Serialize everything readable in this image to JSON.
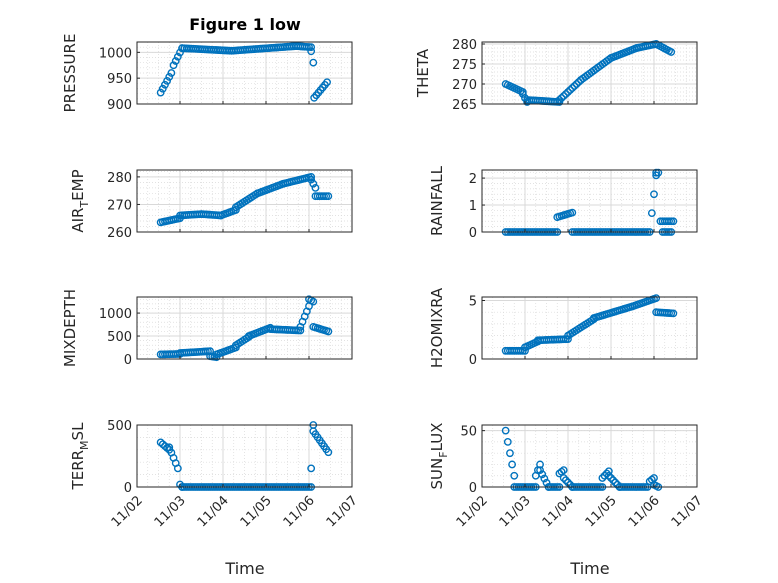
{
  "title": "Figure 1 low",
  "marker_color": "#0072bd",
  "x_tick_labels": [
    "11/02",
    "11/03",
    "11/04",
    "11/05",
    "11/06",
    "11/07"
  ],
  "x_label": "Time",
  "chart_data": [
    {
      "type": "scatter",
      "id": "pressure",
      "ylabel": "PRESSURE",
      "ylim": [
        900,
        1020
      ],
      "yticks": [
        900,
        950,
        1000
      ],
      "ytick_labels": [
        "900",
        "950",
        "1000"
      ],
      "xlim": [
        2.0,
        7.0
      ],
      "grid": true,
      "minor_grid": true,
      "segments": [
        {
          "x": [
            2.55,
            2.8
          ],
          "y": [
            922,
            960
          ]
        },
        {
          "x": [
            2.85,
            3.05
          ],
          "y": [
            975,
            1008
          ]
        },
        {
          "x": [
            3.05,
            4.2
          ],
          "y": [
            1008,
            1003
          ]
        },
        {
          "x": [
            4.2,
            5.7
          ],
          "y": [
            1003,
            1012
          ]
        },
        {
          "x": [
            5.7,
            6.05
          ],
          "y": [
            1012,
            1010
          ]
        },
        {
          "x": [
            6.05,
            6.1
          ],
          "y": [
            1002,
            980
          ]
        },
        {
          "x": [
            6.12,
            6.42
          ],
          "y": [
            912,
            942
          ]
        }
      ]
    },
    {
      "type": "scatter",
      "id": "theta",
      "ylabel": "THETA",
      "ylim": [
        265,
        280.5
      ],
      "yticks": [
        265,
        270,
        275,
        280
      ],
      "ytick_labels": [
        "265",
        "270",
        "275",
        "280"
      ],
      "xlim": [
        2.0,
        7.0
      ],
      "grid": true,
      "minor_grid": true,
      "segments": [
        {
          "x": [
            2.55,
            2.95
          ],
          "y": [
            270,
            268
          ]
        },
        {
          "x": [
            2.95,
            3.05
          ],
          "y": [
            267.5,
            265.5
          ]
        },
        {
          "x": [
            3.05,
            3.8
          ],
          "y": [
            266,
            265.5
          ]
        },
        {
          "x": [
            3.8,
            4.3
          ],
          "y": [
            266,
            271
          ]
        },
        {
          "x": [
            4.3,
            5.0
          ],
          "y": [
            271,
            276.5
          ]
        },
        {
          "x": [
            5.0,
            5.6
          ],
          "y": [
            276.5,
            279
          ]
        },
        {
          "x": [
            5.6,
            6.05
          ],
          "y": [
            279,
            280
          ]
        },
        {
          "x": [
            6.05,
            6.4
          ],
          "y": [
            280,
            278
          ]
        }
      ]
    },
    {
      "type": "scatter",
      "id": "air_temp",
      "ylabel": "AIR",
      "ylabel_sub": "T",
      "ylabel_tail": "EMP",
      "ylim": [
        260,
        282.5
      ],
      "yticks": [
        260,
        270,
        280
      ],
      "ytick_labels": [
        "260",
        "270",
        "280"
      ],
      "xlim": [
        2.0,
        7.0
      ],
      "grid": true,
      "minor_grid": true,
      "segments": [
        {
          "x": [
            2.55,
            3.0
          ],
          "y": [
            263.5,
            265
          ]
        },
        {
          "x": [
            3.0,
            3.5
          ],
          "y": [
            266,
            266.5
          ]
        },
        {
          "x": [
            3.5,
            3.95
          ],
          "y": [
            266.5,
            266
          ]
        },
        {
          "x": [
            3.95,
            4.3
          ],
          "y": [
            266,
            268
          ]
        },
        {
          "x": [
            4.3,
            4.8
          ],
          "y": [
            269,
            274
          ]
        },
        {
          "x": [
            4.8,
            5.4
          ],
          "y": [
            274,
            277.5
          ]
        },
        {
          "x": [
            5.4,
            6.05
          ],
          "y": [
            277.5,
            280
          ]
        },
        {
          "x": [
            6.05,
            6.15
          ],
          "y": [
            279,
            276
          ]
        },
        {
          "x": [
            6.15,
            6.45
          ],
          "y": [
            273,
            273
          ]
        }
      ]
    },
    {
      "type": "scatter",
      "id": "rainfall",
      "ylabel": "RAINFALL",
      "ylim": [
        0,
        2.3
      ],
      "yticks": [
        0,
        1,
        2
      ],
      "ytick_labels": [
        "0",
        "1",
        "2"
      ],
      "xlim": [
        2.0,
        7.0
      ],
      "grid": true,
      "minor_grid": true,
      "segments": [
        {
          "x": [
            2.55,
            3.75
          ],
          "y": [
            0,
            0
          ]
        },
        {
          "x": [
            3.75,
            4.1
          ],
          "y": [
            0.55,
            0.72
          ]
        },
        {
          "x": [
            4.1,
            5.9
          ],
          "y": [
            0,
            0
          ]
        },
        {
          "x": [
            5.95,
            6.05
          ],
          "y": [
            0.7,
            2.1
          ]
        },
        {
          "x": [
            6.05,
            6.1
          ],
          "y": [
            2.2,
            2.2
          ]
        },
        {
          "x": [
            6.15,
            6.45
          ],
          "y": [
            0.4,
            0.4
          ]
        },
        {
          "x": [
            6.2,
            6.4
          ],
          "y": [
            0,
            0
          ]
        }
      ]
    },
    {
      "type": "scatter",
      "id": "mixdepth",
      "ylabel": "MIXDEPTH",
      "ylim": [
        0,
        1350
      ],
      "yticks": [
        0,
        500,
        1000
      ],
      "ytick_labels": [
        "0",
        "500",
        "1000"
      ],
      "xlim": [
        2.0,
        7.0
      ],
      "grid": true,
      "minor_grid": true,
      "segments": [
        {
          "x": [
            2.55,
            3.0
          ],
          "y": [
            100,
            110
          ]
        },
        {
          "x": [
            3.0,
            3.7
          ],
          "y": [
            130,
            170
          ]
        },
        {
          "x": [
            3.7,
            3.85
          ],
          "y": [
            60,
            40
          ]
        },
        {
          "x": [
            3.85,
            4.3
          ],
          "y": [
            100,
            250
          ]
        },
        {
          "x": [
            4.3,
            4.6
          ],
          "y": [
            300,
            480
          ]
        },
        {
          "x": [
            4.6,
            5.1
          ],
          "y": [
            500,
            680
          ]
        },
        {
          "x": [
            5.1,
            5.8
          ],
          "y": [
            650,
            620
          ]
        },
        {
          "x": [
            5.8,
            6.0
          ],
          "y": [
            700,
            1150
          ]
        },
        {
          "x": [
            6.0,
            6.1
          ],
          "y": [
            1300,
            1250
          ]
        },
        {
          "x": [
            6.1,
            6.45
          ],
          "y": [
            700,
            600
          ]
        }
      ]
    },
    {
      "type": "scatter",
      "id": "h2omixra",
      "ylabel": "H2OMIXRA",
      "ylim": [
        0,
        5.3
      ],
      "yticks": [
        0,
        5
      ],
      "ytick_labels": [
        "0",
        "5"
      ],
      "xlim": [
        2.0,
        7.0
      ],
      "grid": true,
      "minor_grid": true,
      "segments": [
        {
          "x": [
            2.55,
            3.0
          ],
          "y": [
            0.7,
            0.7
          ]
        },
        {
          "x": [
            3.0,
            3.3
          ],
          "y": [
            1.0,
            1.5
          ]
        },
        {
          "x": [
            3.3,
            4.0
          ],
          "y": [
            1.6,
            1.7
          ]
        },
        {
          "x": [
            4.0,
            4.6
          ],
          "y": [
            2.0,
            3.4
          ]
        },
        {
          "x": [
            4.6,
            5.5
          ],
          "y": [
            3.5,
            4.5
          ]
        },
        {
          "x": [
            5.5,
            6.05
          ],
          "y": [
            4.5,
            5.2
          ]
        },
        {
          "x": [
            6.05,
            6.45
          ],
          "y": [
            4.0,
            3.9
          ]
        }
      ]
    },
    {
      "type": "scatter",
      "id": "terr_msl",
      "ylabel": "TERR",
      "ylabel_sub": "M",
      "ylabel_tail": "SL",
      "ylim": [
        0,
        500
      ],
      "yticks": [
        0,
        500
      ],
      "ytick_labels": [
        "0",
        "500"
      ],
      "xlim": [
        2.0,
        7.0
      ],
      "grid": true,
      "minor_grid": true,
      "segments": [
        {
          "x": [
            2.55,
            2.75
          ],
          "y": [
            360,
            300
          ]
        },
        {
          "x": [
            2.75,
            2.95
          ],
          "y": [
            320,
            150
          ]
        },
        {
          "x": [
            3.0,
            3.05
          ],
          "y": [
            20,
            0
          ]
        },
        {
          "x": [
            3.05,
            6.05
          ],
          "y": [
            0,
            0
          ]
        },
        {
          "x": [
            6.05,
            6.1
          ],
          "y": [
            150,
            500
          ]
        },
        {
          "x": [
            6.1,
            6.45
          ],
          "y": [
            450,
            280
          ]
        }
      ]
    },
    {
      "type": "scatter",
      "id": "sun_flux",
      "ylabel": "SUN",
      "ylabel_sub": "F",
      "ylabel_tail": "LUX",
      "ylim": [
        0,
        55
      ],
      "yticks": [
        0,
        50
      ],
      "ytick_labels": [
        "0",
        "50"
      ],
      "xlim": [
        2.0,
        7.0
      ],
      "grid": true,
      "minor_grid": true,
      "segments": [
        {
          "x": [
            2.55,
            2.75
          ],
          "y": [
            50,
            10
          ]
        },
        {
          "x": [
            2.75,
            3.25
          ],
          "y": [
            0,
            0
          ]
        },
        {
          "x": [
            3.25,
            3.35
          ],
          "y": [
            10,
            20
          ]
        },
        {
          "x": [
            3.35,
            3.55
          ],
          "y": [
            15,
            0
          ]
        },
        {
          "x": [
            3.55,
            3.8
          ],
          "y": [
            0,
            0
          ]
        },
        {
          "x": [
            3.8,
            3.9
          ],
          "y": [
            12,
            15
          ]
        },
        {
          "x": [
            3.9,
            4.1
          ],
          "y": [
            8,
            0
          ]
        },
        {
          "x": [
            4.1,
            4.8
          ],
          "y": [
            0,
            0
          ]
        },
        {
          "x": [
            4.8,
            4.95
          ],
          "y": [
            8,
            14
          ]
        },
        {
          "x": [
            4.95,
            5.2
          ],
          "y": [
            10,
            0
          ]
        },
        {
          "x": [
            5.2,
            5.85
          ],
          "y": [
            0,
            0
          ]
        },
        {
          "x": [
            5.9,
            6.0
          ],
          "y": [
            5,
            8
          ]
        },
        {
          "x": [
            6.0,
            6.1
          ],
          "y": [
            2,
            0
          ]
        }
      ]
    }
  ]
}
